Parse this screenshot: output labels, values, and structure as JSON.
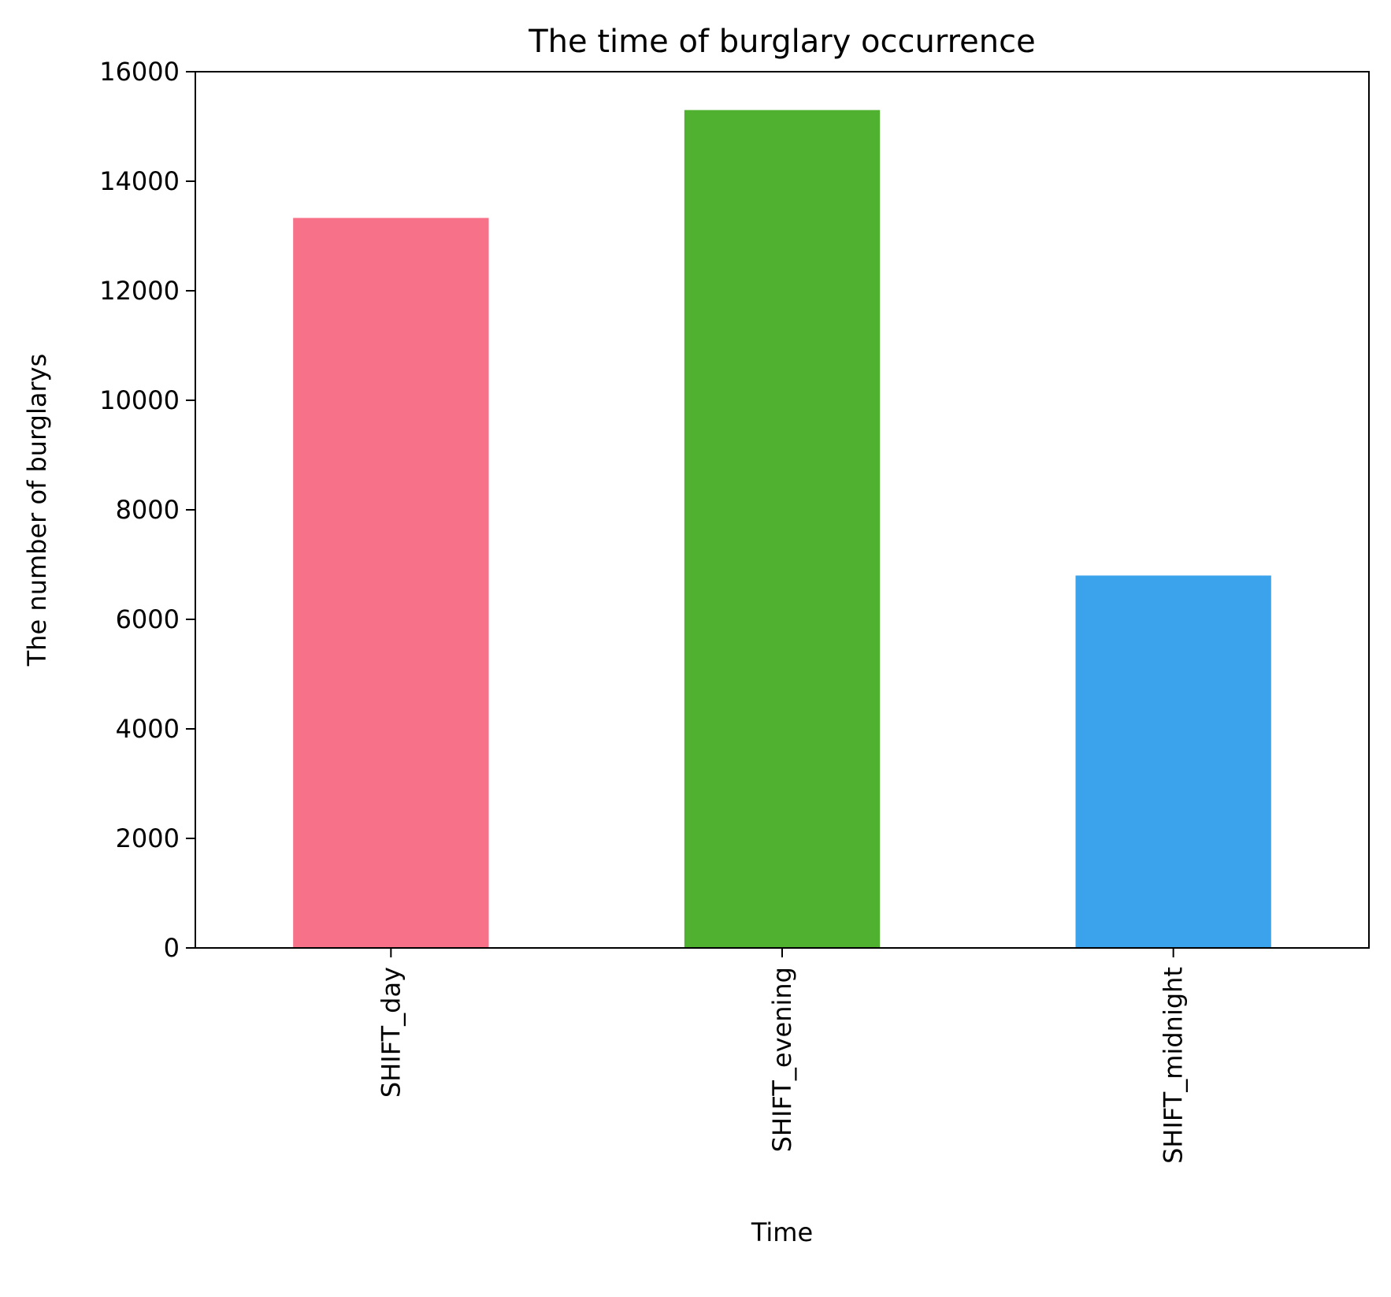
{
  "chart_data": {
    "type": "bar",
    "title": "The time of burglary occurrence",
    "xlabel": "Time",
    "ylabel": "The number of burglarys",
    "categories": [
      "SHIFT_day",
      "SHIFT_evening",
      "SHIFT_midnight"
    ],
    "values": [
      13330,
      15300,
      6800
    ],
    "colors": [
      "#f77289",
      "#50b131",
      "#3ba3ec"
    ],
    "ylim": [
      0,
      16000
    ],
    "yticks": [
      0,
      2000,
      4000,
      6000,
      8000,
      10000,
      12000,
      14000,
      16000
    ],
    "ytick_labels": [
      "0",
      "2000",
      "4000",
      "6000",
      "8000",
      "10000",
      "12000",
      "14000",
      "16000"
    ],
    "x_tick_rotation": "vertical",
    "grid": false,
    "legend": "none"
  }
}
